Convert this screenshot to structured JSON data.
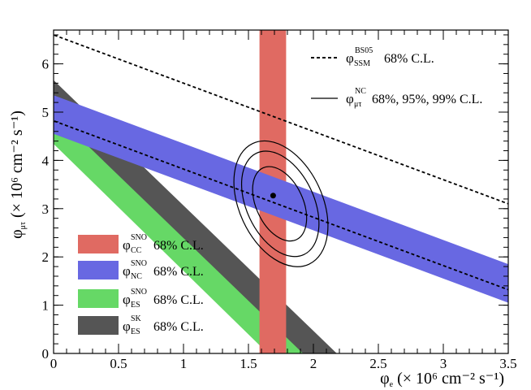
{
  "colors": {
    "cc": "#e06a62",
    "nc": "#6868e2",
    "es_sno": "#66d866",
    "es_sk": "#555555",
    "line": "#000000"
  },
  "chart_data": {
    "type": "line",
    "title": "",
    "xlabel": {
      "symbol": "φ",
      "sub": "e",
      "unit": " (× 10⁶ cm⁻² s⁻¹)"
    },
    "ylabel": {
      "symbol": "φ",
      "sub": "μτ",
      "unit": " (× 10⁶ cm⁻² s⁻¹)"
    },
    "xlim": [
      0,
      3.5
    ],
    "ylim": [
      0,
      6.7
    ],
    "xticks": [
      0,
      0.5,
      1,
      1.5,
      2,
      2.5,
      3,
      3.5
    ],
    "xtick_labels": [
      "0",
      "0.5",
      "1",
      "1.5",
      "2",
      "2.5",
      "3",
      "3.5"
    ],
    "yticks": [
      0,
      1,
      2,
      3,
      4,
      5,
      6
    ],
    "ytick_labels": [
      "0",
      "1",
      "2",
      "3",
      "4",
      "5",
      "6"
    ],
    "bands": [
      {
        "id": "es_sno",
        "kind": "diagonal",
        "color_key": "es_sno",
        "upper_intercept_x": 1.65,
        "upper_slope": -0.38,
        "lower_intercept_x": 2.13,
        "lower_slope": -0.38
      },
      {
        "id": "es_sk",
        "kind": "diagonal",
        "color_key": "es_sk",
        "upper_intercept_x": 1.92,
        "upper_slope": -0.385,
        "lower_intercept_x": 2.18,
        "lower_slope": -0.385
      },
      {
        "id": "cc",
        "kind": "vertical",
        "color_key": "cc",
        "x_min": 1.585,
        "x_max": 1.79
      },
      {
        "id": "nc",
        "kind": "diagonal_nc",
        "color_key": "nc",
        "low_intercept": 4.55,
        "high_intercept": 5.35,
        "slope": -1.0
      }
    ],
    "dashed_lines": [
      {
        "name": "SSM upper",
        "intercept": 6.6,
        "slope": -1.0
      },
      {
        "name": "SSM lower",
        "intercept": 4.82,
        "slope": -1.0
      }
    ],
    "best_fit": {
      "x": 1.69,
      "y": 3.27
    },
    "contours": [
      {
        "cl": "68%",
        "center": [
          1.74,
          3.1
        ],
        "rx": 0.18,
        "ry": 0.82,
        "angle_deg": -25
      },
      {
        "cl": "95%",
        "center": [
          1.745,
          3.1
        ],
        "rx": 0.26,
        "ry": 1.16,
        "angle_deg": -25
      },
      {
        "cl": "99%",
        "center": [
          1.75,
          3.1
        ],
        "rx": 0.32,
        "ry": 1.38,
        "angle_deg": -25
      }
    ],
    "legend_top": [
      {
        "style": "dashed",
        "symbol": "φ",
        "sub": "SSM",
        "sup": "BS05",
        "text": "68% C.L."
      },
      {
        "style": "solid",
        "symbol": "φ",
        "sub": "μτ",
        "sup": "NC",
        "text": "68%, 95%, 99% C.L."
      }
    ],
    "legend_bottom": [
      {
        "color_key": "cc",
        "symbol": "φ",
        "sub": "CC",
        "sup": "SNO",
        "text": "68% C.L."
      },
      {
        "color_key": "nc",
        "symbol": "φ",
        "sub": "NC",
        "sup": "SNO",
        "text": "68% C.L."
      },
      {
        "color_key": "es_sno",
        "symbol": "φ",
        "sub": "ES",
        "sup": "SNO",
        "text": "68% C.L."
      },
      {
        "color_key": "es_sk",
        "symbol": "φ",
        "sub": "ES",
        "sup": "SK",
        "text": "68% C.L."
      }
    ]
  }
}
